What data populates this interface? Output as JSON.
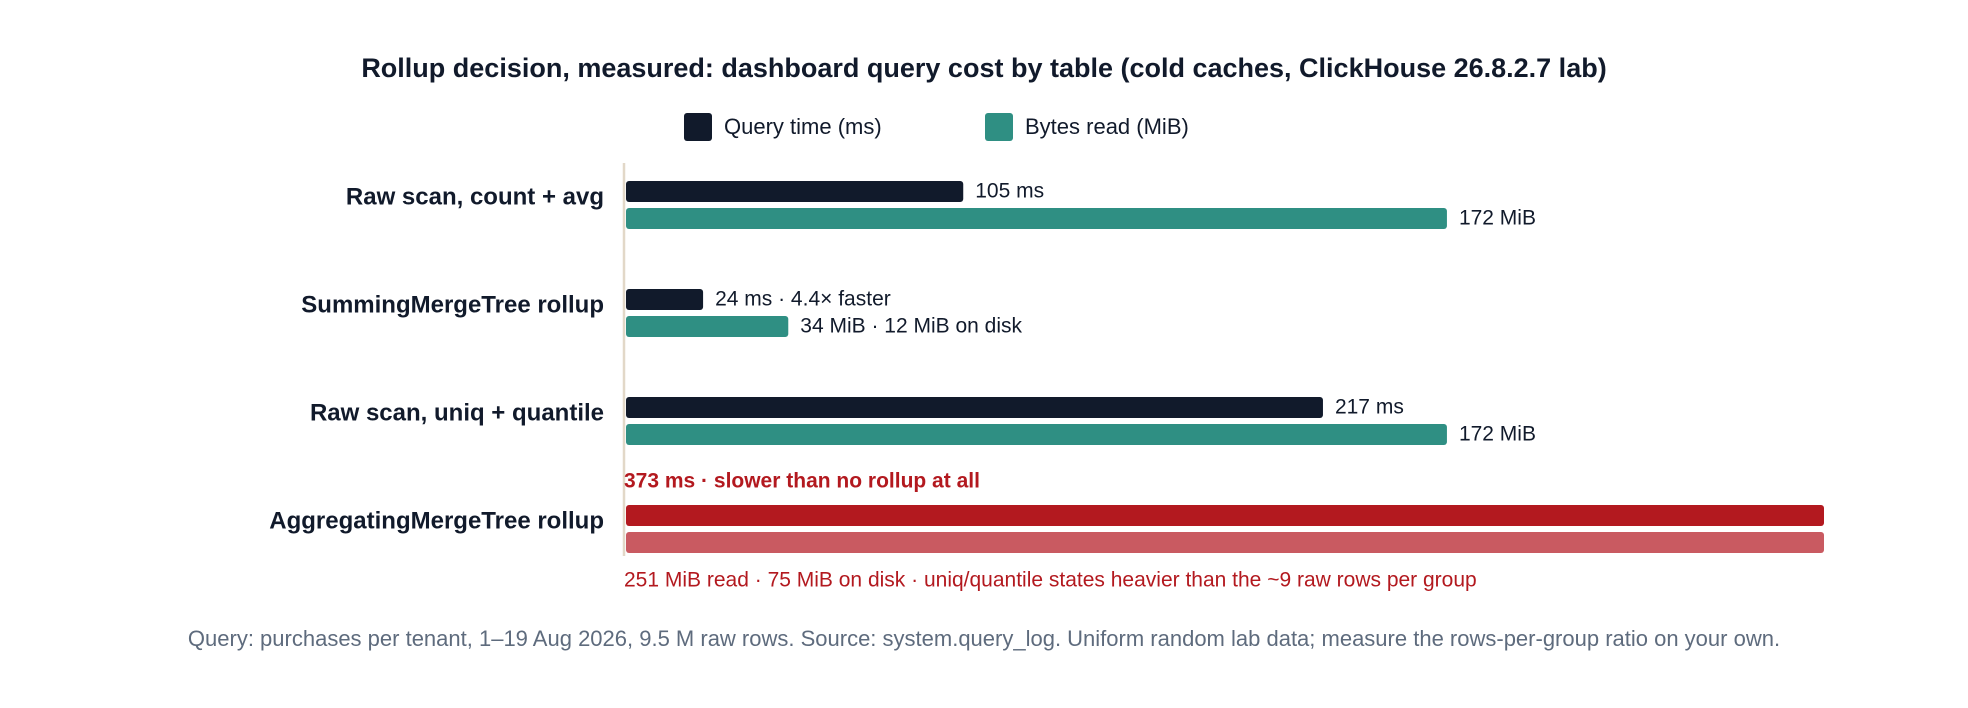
{
  "chart_data": {
    "type": "bar",
    "orientation": "horizontal",
    "title": "Rollup decision, measured: dashboard query cost by table (cold caches, ClickHouse 26.8.2.7 lab)",
    "categories": [
      "Raw scan, count + avg",
      "SummingMergeTree rollup",
      "Raw scan, uniq + quantile",
      "AggregatingMergeTree rollup"
    ],
    "series": [
      {
        "name": "Query time (ms)",
        "color": "#111a2b",
        "colors": [
          "#111a2b",
          "#111a2b",
          "#111a2b",
          "#b3191f"
        ],
        "values": [
          105,
          24,
          217,
          373
        ],
        "value_labels": [
          "105 ms",
          "24 ms · 4.4× faster",
          "217 ms",
          "373 ms · slower than no rollup at all"
        ]
      },
      {
        "name": "Bytes read (MiB)",
        "color": "#2f8f83",
        "colors": [
          "#2f8f83",
          "#2f8f83",
          "#2f8f83",
          "#c95a61"
        ],
        "values": [
          172,
          34,
          172,
          251
        ],
        "value_labels": [
          "172 MiB",
          "34 MiB · 12 MiB on disk",
          "172 MiB",
          "251 MiB read · 75 MiB on disk · uniq/quantile states heavier than the ~9 raw rows per group"
        ]
      }
    ],
    "footnote": "Query: purchases per tenant, 1–19 Aug 2026, 9.5 M raw rows. Source: system.query_log. Uniform random lab data; measure the rows-per-group ratio on your own."
  }
}
